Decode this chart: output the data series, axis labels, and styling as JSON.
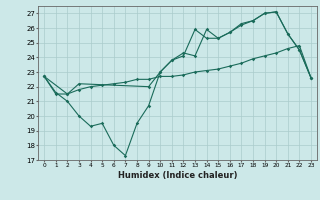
{
  "title": "",
  "xlabel": "Humidex (Indice chaleur)",
  "background_color": "#cce8e8",
  "grid_color": "#aacccc",
  "line_color": "#1a6b5a",
  "xlim": [
    -0.5,
    23.5
  ],
  "ylim": [
    17,
    27.5
  ],
  "yticks": [
    17,
    18,
    19,
    20,
    21,
    22,
    23,
    24,
    25,
    26,
    27
  ],
  "xticks": [
    0,
    1,
    2,
    3,
    4,
    5,
    6,
    7,
    8,
    9,
    10,
    11,
    12,
    13,
    14,
    15,
    16,
    17,
    18,
    19,
    20,
    21,
    22,
    23
  ],
  "line1_x": [
    0,
    1,
    2,
    3,
    4,
    5,
    6,
    7,
    8,
    9,
    10,
    11,
    12,
    13,
    14,
    15,
    16,
    17,
    18,
    19,
    20,
    21,
    22,
    23
  ],
  "line1_y": [
    22.7,
    21.6,
    21.0,
    20.0,
    19.3,
    19.5,
    18.0,
    17.3,
    19.5,
    20.7,
    23.0,
    23.8,
    24.1,
    25.9,
    25.3,
    25.3,
    25.7,
    26.2,
    26.5,
    27.0,
    27.1,
    25.6,
    24.5,
    22.6
  ],
  "line2_x": [
    0,
    2,
    3,
    9,
    10,
    11,
    12,
    13,
    14,
    15,
    16,
    17,
    18,
    19,
    20,
    21,
    22,
    23
  ],
  "line2_y": [
    22.7,
    21.5,
    22.2,
    22.0,
    23.0,
    23.8,
    24.3,
    24.1,
    25.9,
    25.3,
    25.7,
    26.3,
    26.5,
    27.0,
    27.1,
    25.6,
    24.5,
    22.6
  ],
  "line3_x": [
    0,
    1,
    2,
    3,
    4,
    5,
    6,
    7,
    8,
    9,
    10,
    11,
    12,
    13,
    14,
    15,
    16,
    17,
    18,
    19,
    20,
    21,
    22,
    23
  ],
  "line3_y": [
    22.7,
    21.5,
    21.5,
    21.8,
    22.0,
    22.1,
    22.2,
    22.3,
    22.5,
    22.5,
    22.7,
    22.7,
    22.8,
    23.0,
    23.1,
    23.2,
    23.4,
    23.6,
    23.9,
    24.1,
    24.3,
    24.6,
    24.8,
    22.6
  ]
}
